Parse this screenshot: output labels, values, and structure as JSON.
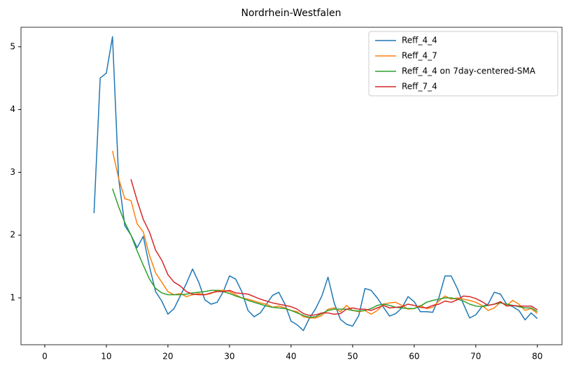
{
  "chart_data": {
    "type": "line",
    "title": "Nordrhein-Westfalen",
    "x": [
      8,
      9,
      10,
      11,
      12,
      13,
      14,
      15,
      16,
      17,
      18,
      19,
      20,
      21,
      22,
      23,
      24,
      25,
      26,
      27,
      28,
      29,
      30,
      31,
      32,
      33,
      34,
      35,
      36,
      37,
      38,
      39,
      40,
      41,
      42,
      43,
      44,
      45,
      46,
      47,
      48,
      49,
      50,
      51,
      52,
      53,
      54,
      55,
      56,
      57,
      58,
      59,
      60,
      61,
      62,
      63,
      64,
      65,
      66,
      67,
      68,
      69,
      70,
      71,
      72,
      73,
      74,
      75,
      76,
      77,
      78,
      79,
      80
    ],
    "series": [
      {
        "name": "Reff_4_4",
        "color": "#1f77b4",
        "values": [
          2.35,
          4.5,
          4.58,
          5.16,
          2.9,
          2.15,
          2.0,
          1.8,
          1.98,
          1.5,
          1.1,
          0.95,
          0.74,
          0.83,
          1.03,
          1.23,
          1.46,
          1.25,
          0.97,
          0.9,
          0.93,
          1.1,
          1.35,
          1.3,
          1.1,
          0.8,
          0.7,
          0.76,
          0.9,
          1.04,
          1.09,
          0.9,
          0.63,
          0.57,
          0.48,
          0.68,
          0.83,
          1.03,
          1.33,
          0.92,
          0.66,
          0.58,
          0.55,
          0.72,
          1.15,
          1.12,
          1.0,
          0.85,
          0.71,
          0.75,
          0.84,
          1.02,
          0.94,
          0.78,
          0.78,
          0.77,
          1.0,
          1.35,
          1.35,
          1.15,
          0.9,
          0.68,
          0.73,
          0.86,
          0.9,
          1.09,
          1.06,
          0.9,
          0.86,
          0.8,
          0.65,
          0.76,
          0.67
        ]
      },
      {
        "name": "Reff_4_7",
        "color": "#ff7f0e",
        "values": [
          null,
          null,
          null,
          3.34,
          2.9,
          2.58,
          2.55,
          2.18,
          2.05,
          1.68,
          1.4,
          1.25,
          1.1,
          1.05,
          1.07,
          1.02,
          1.05,
          1.07,
          1.05,
          1.07,
          1.12,
          1.12,
          1.1,
          1.05,
          1.0,
          0.98,
          0.95,
          0.92,
          0.9,
          0.85,
          0.87,
          0.84,
          0.8,
          0.78,
          0.7,
          0.68,
          0.68,
          0.72,
          0.82,
          0.84,
          0.78,
          0.88,
          0.8,
          0.78,
          0.8,
          0.74,
          0.8,
          0.9,
          0.92,
          0.93,
          0.88,
          0.82,
          0.83,
          0.88,
          0.83,
          0.85,
          0.95,
          1.03,
          0.98,
          1.0,
          0.98,
          0.96,
          0.93,
          0.88,
          0.8,
          0.84,
          0.93,
          0.88,
          0.96,
          0.9,
          0.8,
          0.83,
          0.75
        ]
      },
      {
        "name": "Reff_4_4 on 7day-centered-SMA",
        "color": "#2ca02c",
        "values": [
          null,
          null,
          null,
          2.74,
          2.45,
          2.2,
          2.0,
          1.75,
          1.52,
          1.3,
          1.15,
          1.08,
          1.05,
          1.05,
          1.05,
          1.06,
          1.08,
          1.09,
          1.1,
          1.12,
          1.12,
          1.1,
          1.07,
          1.03,
          1.0,
          0.96,
          0.93,
          0.9,
          0.87,
          0.85,
          0.84,
          0.83,
          0.8,
          0.76,
          0.72,
          0.69,
          0.7,
          0.75,
          0.8,
          0.82,
          0.82,
          0.82,
          0.8,
          0.79,
          0.8,
          0.83,
          0.88,
          0.9,
          0.88,
          0.85,
          0.84,
          0.83,
          0.83,
          0.87,
          0.93,
          0.96,
          0.98,
          1.0,
          1.0,
          0.98,
          0.95,
          0.9,
          0.87,
          0.86,
          0.88,
          0.9,
          0.92,
          0.9,
          0.88,
          0.86,
          0.84,
          0.84,
          0.78
        ]
      },
      {
        "name": "Reff_7_4",
        "color": "#d62728",
        "values": [
          null,
          null,
          null,
          null,
          null,
          null,
          2.89,
          2.55,
          2.25,
          2.05,
          1.76,
          1.6,
          1.37,
          1.25,
          1.19,
          1.1,
          1.06,
          1.05,
          1.05,
          1.08,
          1.1,
          1.1,
          1.12,
          1.08,
          1.07,
          1.06,
          1.02,
          0.98,
          0.95,
          0.92,
          0.9,
          0.88,
          0.86,
          0.82,
          0.75,
          0.72,
          0.73,
          0.76,
          0.76,
          0.74,
          0.75,
          0.82,
          0.84,
          0.82,
          0.82,
          0.8,
          0.84,
          0.88,
          0.84,
          0.85,
          0.86,
          0.9,
          0.88,
          0.85,
          0.84,
          0.88,
          0.9,
          0.95,
          0.93,
          0.97,
          1.03,
          1.02,
          0.99,
          0.94,
          0.88,
          0.9,
          0.94,
          0.87,
          0.88,
          0.87,
          0.87,
          0.87,
          0.81
        ]
      }
    ],
    "xlim": [
      -3.86,
      84
    ],
    "ylim": [
      0.254,
      5.31
    ],
    "xticks": [
      0,
      10,
      20,
      30,
      40,
      50,
      60,
      70,
      80
    ],
    "yticks": [
      1,
      2,
      3,
      4,
      5
    ],
    "legend": "upper right"
  }
}
